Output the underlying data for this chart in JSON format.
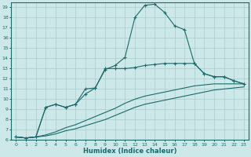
{
  "xlabel": "Humidex (Indice chaleur)",
  "background_color": "#cce8e8",
  "line_color": "#1a6b6b",
  "grid_color": "#aacccc",
  "xlim": [
    -0.5,
    23.5
  ],
  "ylim": [
    6,
    19.5
  ],
  "yticks": [
    6,
    7,
    8,
    9,
    10,
    11,
    12,
    13,
    14,
    15,
    16,
    17,
    18,
    19
  ],
  "xticks": [
    0,
    1,
    2,
    3,
    4,
    5,
    6,
    7,
    8,
    9,
    10,
    11,
    12,
    13,
    14,
    15,
    16,
    17,
    18,
    19,
    20,
    21,
    22,
    23
  ],
  "line_top_x": [
    0,
    1,
    2,
    3,
    4,
    5,
    6,
    7,
    8,
    9,
    10,
    11,
    12,
    13,
    14,
    15,
    16,
    17,
    18,
    19,
    20,
    21,
    22,
    23
  ],
  "line_top_y": [
    6.3,
    6.2,
    6.3,
    9.2,
    9.5,
    9.2,
    9.5,
    10.5,
    11.1,
    12.9,
    13.3,
    14.1,
    18.0,
    19.2,
    19.3,
    18.5,
    17.2,
    16.8,
    13.5,
    12.5,
    12.2,
    12.2,
    11.8,
    11.5
  ],
  "line_mid_x": [
    0,
    1,
    2,
    3,
    4,
    5,
    6,
    7,
    8,
    9,
    10,
    11,
    12,
    13,
    14,
    15,
    16,
    17,
    18,
    19,
    20,
    21,
    22,
    23
  ],
  "line_mid_y": [
    6.3,
    6.2,
    6.3,
    9.2,
    9.5,
    9.2,
    9.5,
    11.0,
    11.1,
    13.0,
    13.0,
    13.0,
    13.1,
    13.3,
    13.4,
    13.5,
    13.5,
    13.5,
    13.5,
    12.5,
    12.2,
    12.2,
    11.8,
    11.5
  ],
  "line_low1_x": [
    0,
    1,
    2,
    3,
    4,
    5,
    6,
    7,
    8,
    9,
    10,
    11,
    12,
    13,
    14,
    15,
    16,
    17,
    18,
    19,
    20,
    21,
    22,
    23
  ],
  "line_low1_y": [
    6.3,
    6.2,
    6.3,
    6.5,
    6.8,
    7.2,
    7.5,
    7.9,
    8.3,
    8.7,
    9.1,
    9.6,
    10.0,
    10.3,
    10.5,
    10.7,
    10.9,
    11.1,
    11.3,
    11.4,
    11.5,
    11.5,
    11.5,
    11.5
  ],
  "line_low2_x": [
    0,
    1,
    2,
    3,
    4,
    5,
    6,
    7,
    8,
    9,
    10,
    11,
    12,
    13,
    14,
    15,
    16,
    17,
    18,
    19,
    20,
    21,
    22,
    23
  ],
  "line_low2_y": [
    6.3,
    6.2,
    6.3,
    6.4,
    6.6,
    6.9,
    7.1,
    7.4,
    7.7,
    8.0,
    8.4,
    8.8,
    9.2,
    9.5,
    9.7,
    9.9,
    10.1,
    10.3,
    10.5,
    10.7,
    10.9,
    11.0,
    11.1,
    11.2
  ]
}
